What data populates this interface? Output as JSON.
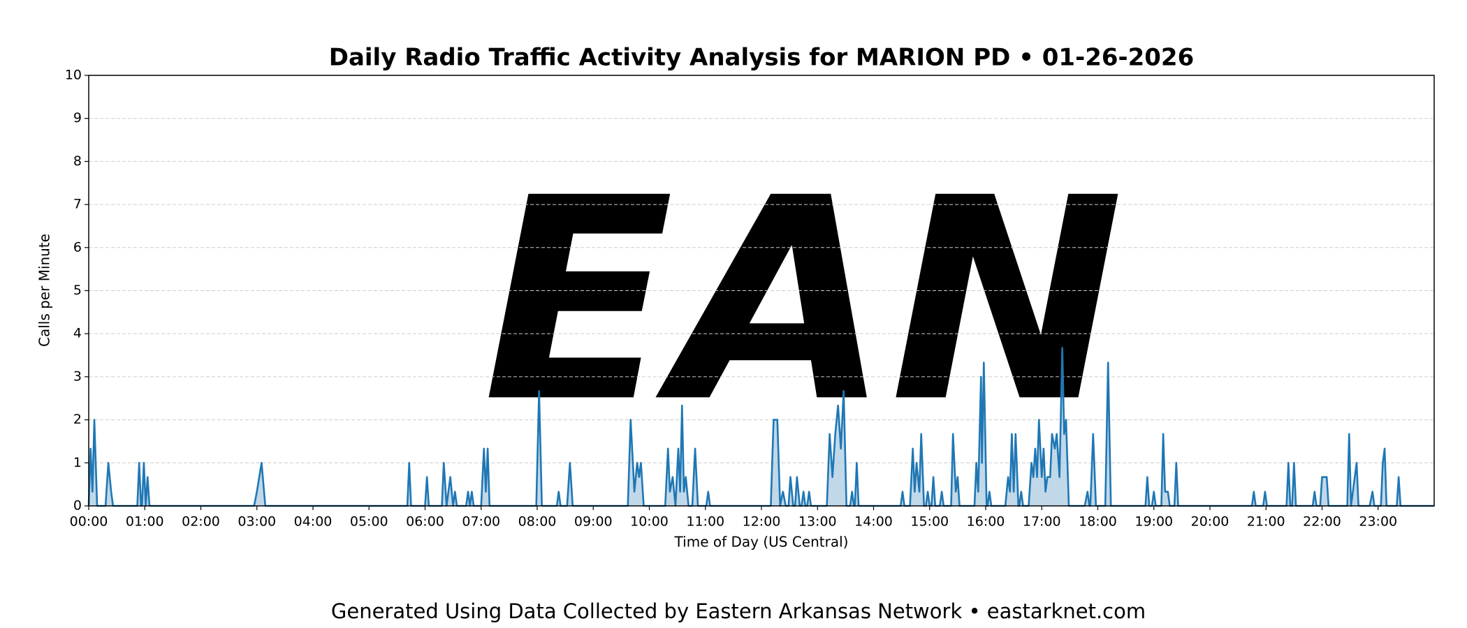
{
  "chart_data": {
    "type": "line",
    "title": "Daily Radio Traffic Activity Analysis for MARION PD • 01-26-2026",
    "xlabel": "Time of Day (US Central)",
    "ylabel": "Calls per Minute",
    "footer": "Generated Using Data Collected by Eastern Arkansas Network • eastarknet.com",
    "watermark": "EAN",
    "color": "#1f77b4",
    "fill_color": "#a6c8e0",
    "grid": true,
    "xlim": [
      0,
      1440
    ],
    "xticks": [
      {
        "value": 0,
        "label": "00:00"
      },
      {
        "value": 60,
        "label": "01:00"
      },
      {
        "value": 120,
        "label": "02:00"
      },
      {
        "value": 180,
        "label": "03:00"
      },
      {
        "value": 240,
        "label": "04:00"
      },
      {
        "value": 300,
        "label": "05:00"
      },
      {
        "value": 360,
        "label": "06:00"
      },
      {
        "value": 420,
        "label": "07:00"
      },
      {
        "value": 480,
        "label": "08:00"
      },
      {
        "value": 540,
        "label": "09:00"
      },
      {
        "value": 600,
        "label": "10:00"
      },
      {
        "value": 660,
        "label": "11:00"
      },
      {
        "value": 720,
        "label": "12:00"
      },
      {
        "value": 780,
        "label": "13:00"
      },
      {
        "value": 840,
        "label": "14:00"
      },
      {
        "value": 900,
        "label": "15:00"
      },
      {
        "value": 960,
        "label": "16:00"
      },
      {
        "value": 1020,
        "label": "17:00"
      },
      {
        "value": 1080,
        "label": "18:00"
      },
      {
        "value": 1140,
        "label": "19:00"
      },
      {
        "value": 1200,
        "label": "20:00"
      },
      {
        "value": 1260,
        "label": "21:00"
      },
      {
        "value": 1320,
        "label": "22:00"
      },
      {
        "value": 1380,
        "label": "23:00"
      }
    ],
    "ylim": [
      0,
      10
    ],
    "yticks": [
      0,
      1,
      2,
      3,
      4,
      5,
      6,
      7,
      8,
      9,
      10
    ],
    "x": [
      0,
      2,
      4,
      6,
      9,
      18,
      21,
      24,
      26,
      52,
      54,
      56,
      57,
      59,
      61,
      63,
      65,
      177,
      180,
      185,
      189,
      341,
      343,
      345,
      360,
      362,
      364,
      378,
      380,
      383,
      387,
      390,
      392,
      394,
      404,
      406,
      408,
      410,
      412,
      420,
      423,
      425,
      427,
      429,
      479,
      482,
      485,
      501,
      503,
      505,
      512,
      515,
      518,
      577,
      580,
      584,
      587,
      589,
      591,
      594,
      617,
      620,
      622,
      625,
      628,
      631,
      633,
      635,
      637,
      639,
      642,
      646,
      649,
      652,
      661,
      663,
      665,
      730,
      733,
      737,
      740,
      743,
      746,
      749,
      751,
      754,
      756,
      758,
      761,
      763,
      765,
      767,
      769,
      771,
      773,
      790,
      793,
      796,
      799,
      802,
      805,
      808,
      811,
      815,
      817,
      819,
      820,
      822,
      824,
      869,
      871,
      873,
      879,
      882,
      884,
      886,
      889,
      891,
      894,
      896,
      898,
      900,
      902,
      904,
      906,
      911,
      913,
      915,
      923,
      925,
      928,
      930,
      932,
      948,
      950,
      952,
      955,
      956,
      958,
      961,
      962,
      964,
      966,
      981,
      984,
      986,
      988,
      990,
      992,
      995,
      996,
      998,
      1000,
      1006,
      1009,
      1011,
      1013,
      1015,
      1017,
      1020,
      1022,
      1024,
      1026,
      1029,
      1031,
      1034,
      1036,
      1039,
      1042,
      1044,
      1046,
      1049,
      1066,
      1069,
      1071,
      1072,
      1075,
      1078,
      1088,
      1091,
      1094,
      1131,
      1133,
      1135,
      1138,
      1140,
      1142,
      1148,
      1150,
      1152,
      1155,
      1157,
      1162,
      1164,
      1166,
      1245,
      1247,
      1249,
      1257,
      1259,
      1261,
      1282,
      1284,
      1286,
      1288,
      1290,
      1292,
      1310,
      1312,
      1314,
      1318,
      1320,
      1322,
      1325,
      1327,
      1347,
      1349,
      1351,
      1353,
      1357,
      1359,
      1371,
      1374,
      1376,
      1383,
      1385,
      1387,
      1389,
      1400,
      1402,
      1404,
      1440
    ],
    "values": [
      0,
      1.33,
      0.33,
      2,
      0,
      0,
      1,
      0.33,
      0,
      0,
      1,
      0,
      0,
      1,
      0,
      0.67,
      0,
      0,
      0.33,
      1,
      0,
      0,
      1,
      0,
      0,
      0.67,
      0,
      0,
      1,
      0,
      0.67,
      0,
      0.33,
      0,
      0,
      0.33,
      0,
      0.33,
      0,
      0,
      1.33,
      0.33,
      1.33,
      0,
      0,
      2.67,
      0,
      0,
      0.33,
      0,
      0,
      1,
      0,
      0,
      2,
      0.33,
      1,
      0.67,
      1,
      0,
      0,
      1.33,
      0.33,
      0.67,
      0,
      1.33,
      0.33,
      2.33,
      0.33,
      0.67,
      0,
      0,
      1.33,
      0,
      0,
      0.33,
      0,
      0,
      2,
      2,
      0,
      0.33,
      0,
      0,
      0.67,
      0,
      0,
      0.67,
      0,
      0,
      0.33,
      0,
      0,
      0.33,
      0,
      0,
      1.67,
      0.67,
      1.67,
      2.33,
      1.33,
      2.67,
      0,
      0,
      0.33,
      0,
      0,
      1,
      0,
      0,
      0.33,
      0,
      0,
      1.33,
      0.33,
      1,
      0.33,
      1.67,
      0,
      0,
      0.33,
      0,
      0,
      0.67,
      0,
      0,
      0.33,
      0,
      0,
      1.67,
      0.33,
      0.67,
      0,
      0,
      1,
      0.33,
      3,
      1,
      3.33,
      0,
      0,
      0.33,
      0,
      0,
      0.67,
      0.33,
      1.67,
      0.33,
      1.67,
      0,
      0,
      0.33,
      0,
      0,
      1,
      0.67,
      1.33,
      0.67,
      2,
      0.67,
      1.33,
      0.33,
      0.67,
      0.67,
      1.67,
      1.33,
      1.67,
      0.67,
      3.67,
      1.67,
      2,
      0,
      0,
      0.33,
      0,
      0,
      1.67,
      0,
      0,
      3.33,
      0,
      0,
      0.67,
      0,
      0,
      0.33,
      0,
      0,
      1.67,
      0.33,
      0.33,
      0,
      0,
      1,
      0,
      0,
      0.33,
      0,
      0,
      0.33,
      0,
      0,
      1,
      0,
      0,
      1,
      0,
      0,
      0.33,
      0,
      0,
      0.67,
      0.67,
      0.67,
      0,
      0,
      1.67,
      0,
      0.33,
      1,
      0,
      0,
      0.33,
      0,
      0,
      1,
      1.33,
      0,
      0,
      0.67,
      0,
      0
    ]
  }
}
